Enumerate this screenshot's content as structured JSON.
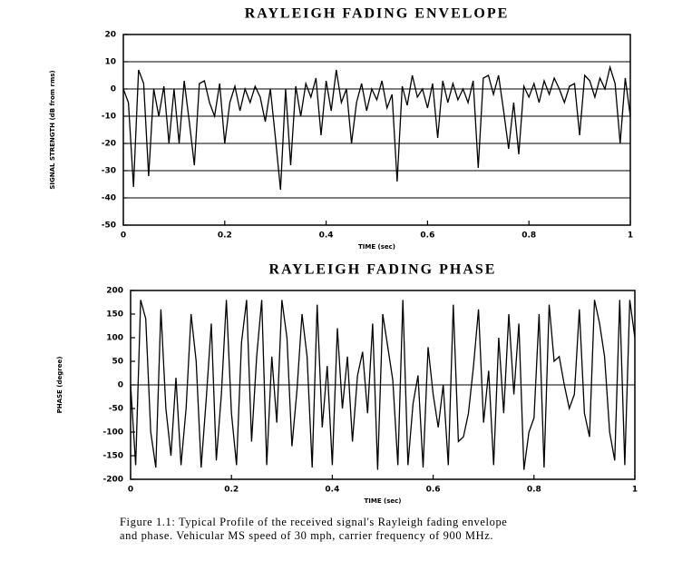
{
  "chart_data": [
    {
      "type": "line",
      "title": "RAYLEIGH FADING ENVELOPE",
      "x_label": "TIME (sec)",
      "y_label": "SIGNAL STRENGTH (dB from rms)",
      "x": [
        0,
        0.01,
        0.02,
        0.03,
        0.04,
        0.05,
        0.06,
        0.07,
        0.08,
        0.09,
        0.1,
        0.11,
        0.12,
        0.13,
        0.14,
        0.15,
        0.16,
        0.17,
        0.18,
        0.19,
        0.2,
        0.21,
        0.22,
        0.23,
        0.24,
        0.25,
        0.26,
        0.27,
        0.28,
        0.29,
        0.3,
        0.31,
        0.32,
        0.33,
        0.34,
        0.35,
        0.36,
        0.37,
        0.38,
        0.39,
        0.4,
        0.41,
        0.42,
        0.43,
        0.44,
        0.45,
        0.46,
        0.47,
        0.48,
        0.49,
        0.5,
        0.51,
        0.52,
        0.53,
        0.54,
        0.55,
        0.56,
        0.57,
        0.58,
        0.59,
        0.6,
        0.61,
        0.62,
        0.63,
        0.64,
        0.65,
        0.66,
        0.67,
        0.68,
        0.69,
        0.7,
        0.71,
        0.72,
        0.73,
        0.74,
        0.75,
        0.76,
        0.77,
        0.78,
        0.79,
        0.8,
        0.81,
        0.82,
        0.83,
        0.84,
        0.85,
        0.86,
        0.87,
        0.88,
        0.89,
        0.9,
        0.91,
        0.92,
        0.93,
        0.94,
        0.95,
        0.96,
        0.97,
        0.98,
        0.99,
        1
      ],
      "series": [
        {
          "color": "#000000",
          "values": [
            0,
            -5,
            -36,
            7,
            2,
            -32,
            0,
            -10,
            1,
            -20,
            0,
            -20,
            3,
            -12,
            -28,
            2,
            3,
            -5,
            -10,
            2,
            -20,
            -5,
            1,
            -8,
            0,
            -5,
            1,
            -3,
            -12,
            0,
            -18,
            -37,
            0,
            -28,
            1,
            -10,
            2,
            -3,
            4,
            -17,
            3,
            -8,
            7,
            -5,
            0,
            -20,
            -5,
            2,
            -8,
            0,
            -4,
            3,
            -7,
            -2,
            -34,
            1,
            -6,
            5,
            -3,
            0,
            -7,
            2,
            -18,
            3,
            -5,
            2,
            -4,
            0,
            -5,
            3,
            -29,
            4,
            5,
            -2,
            5,
            -8,
            -22,
            -5,
            -24,
            1,
            -3,
            2,
            -5,
            3,
            -2,
            4,
            0,
            -5,
            1,
            2,
            -17,
            5,
            3,
            -3,
            4,
            0,
            8,
            2,
            -20,
            4,
            -10
          ]
        }
      ],
      "xlim": [
        0,
        1
      ],
      "xticks": [
        0,
        0.2,
        0.4,
        0.6,
        0.8,
        1
      ],
      "ylim": [
        -50,
        20
      ],
      "yticks": [
        -50,
        -40,
        -30,
        -20,
        -10,
        0,
        10,
        20
      ],
      "grid": true
    },
    {
      "type": "line",
      "title": "RAYLEIGH FADING PHASE",
      "x_label": "TIME (sec)",
      "y_label": "PHASE (degree)",
      "x": [
        0,
        0.01,
        0.02,
        0.03,
        0.04,
        0.05,
        0.06,
        0.07,
        0.08,
        0.09,
        0.1,
        0.11,
        0.12,
        0.13,
        0.14,
        0.15,
        0.16,
        0.17,
        0.18,
        0.19,
        0.2,
        0.21,
        0.22,
        0.23,
        0.24,
        0.25,
        0.26,
        0.27,
        0.28,
        0.29,
        0.3,
        0.31,
        0.32,
        0.33,
        0.34,
        0.35,
        0.36,
        0.37,
        0.38,
        0.39,
        0.4,
        0.41,
        0.42,
        0.43,
        0.44,
        0.45,
        0.46,
        0.47,
        0.48,
        0.49,
        0.5,
        0.51,
        0.52,
        0.53,
        0.54,
        0.55,
        0.56,
        0.57,
        0.58,
        0.59,
        0.6,
        0.61,
        0.62,
        0.63,
        0.64,
        0.65,
        0.66,
        0.67,
        0.68,
        0.69,
        0.7,
        0.71,
        0.72,
        0.73,
        0.74,
        0.75,
        0.76,
        0.77,
        0.78,
        0.79,
        0.8,
        0.81,
        0.82,
        0.83,
        0.84,
        0.85,
        0.86,
        0.87,
        0.88,
        0.89,
        0.9,
        0.91,
        0.92,
        0.93,
        0.94,
        0.95,
        0.96,
        0.97,
        0.98,
        0.99,
        1
      ],
      "series": [
        {
          "color": "#000000",
          "values": [
            0,
            -170,
            180,
            140,
            -100,
            -175,
            160,
            -50,
            -150,
            15,
            -170,
            -50,
            150,
            50,
            -175,
            -30,
            130,
            -160,
            -20,
            180,
            -60,
            -170,
            90,
            180,
            -120,
            60,
            180,
            -170,
            60,
            -80,
            180,
            100,
            -130,
            -10,
            150,
            60,
            -175,
            170,
            -90,
            40,
            -170,
            120,
            -50,
            60,
            -120,
            20,
            70,
            -60,
            130,
            -180,
            150,
            80,
            10,
            -170,
            180,
            -170,
            -40,
            20,
            -175,
            80,
            -20,
            -90,
            0,
            -170,
            170,
            -120,
            -110,
            -60,
            40,
            160,
            -80,
            30,
            -170,
            100,
            -60,
            150,
            -20,
            130,
            -180,
            -100,
            -70,
            150,
            -175,
            170,
            50,
            60,
            0,
            -50,
            -20,
            160,
            -60,
            -110,
            180,
            130,
            60,
            -100,
            -160,
            180,
            -170,
            180,
            100
          ]
        }
      ],
      "xlim": [
        0,
        1
      ],
      "xticks": [
        0,
        0.2,
        0.4,
        0.6,
        0.8,
        1
      ],
      "ylim": [
        -200,
        200
      ],
      "yticks": [
        -200,
        -150,
        -100,
        -50,
        0,
        50,
        100,
        150,
        200
      ],
      "grid": false,
      "reference_lines": [
        0
      ]
    }
  ],
  "caption": [
    "Figure 1.1: Typical Profile of the received signal's Rayleigh fading envelope",
    "and phase. Vehicular MS speed of 30 mph, carrier frequency of 900 MHz."
  ]
}
